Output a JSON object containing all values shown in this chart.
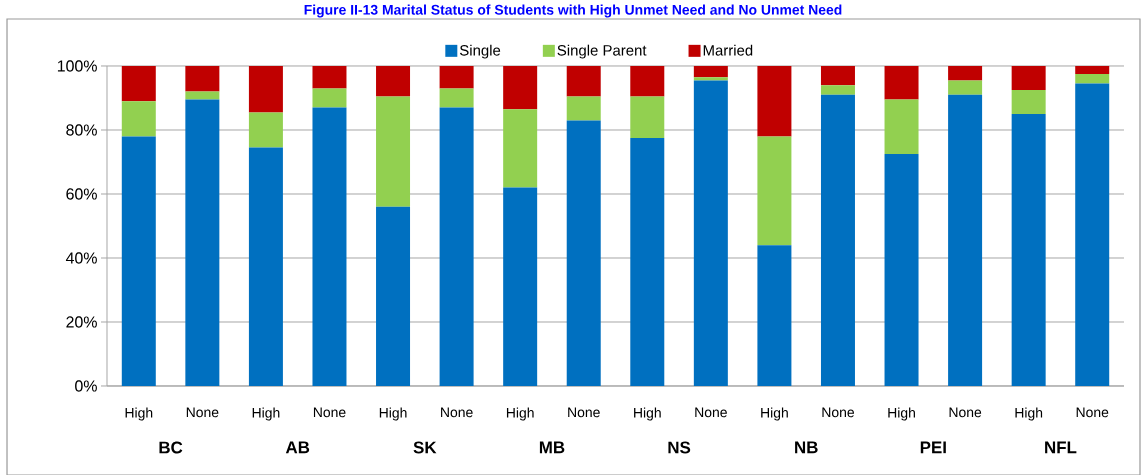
{
  "chart_data": {
    "type": "bar",
    "stacked": true,
    "title": "Figure II-13 Marital Status of Students with High Unmet Need and No Unmet Need",
    "categories": [
      "High",
      "None",
      "High",
      "None",
      "High",
      "None",
      "High",
      "None",
      "High",
      "None",
      "High",
      "None",
      "High",
      "None",
      "High",
      "None"
    ],
    "annotations": [
      "BC",
      "AB",
      "SK",
      "MB",
      "NS",
      "NB",
      "PEI",
      "NFL"
    ],
    "series": [
      {
        "name": "Single",
        "color": "#0070c0",
        "values": [
          78,
          89.5,
          74.5,
          87,
          56,
          87,
          62,
          83,
          77.5,
          95.5,
          44,
          91,
          72.5,
          91,
          85,
          94.5
        ]
      },
      {
        "name": "Single Parent",
        "color": "#92d050",
        "values": [
          11,
          2.5,
          11,
          6,
          34.5,
          6,
          24.5,
          7.5,
          13,
          1,
          34,
          3,
          17,
          4.5,
          7.5,
          3
        ]
      },
      {
        "name": "Married",
        "color": "#c00000",
        "values": [
          11,
          8,
          14.5,
          7,
          9.5,
          7,
          13.5,
          9.5,
          9.5,
          3.5,
          22,
          6,
          10.5,
          4.5,
          7.5,
          2.5
        ]
      }
    ],
    "ylim": [
      0,
      100
    ],
    "yticks": [
      {
        "value": 0,
        "label": "0%"
      },
      {
        "value": 20,
        "label": "20%"
      },
      {
        "value": 40,
        "label": "40%"
      },
      {
        "value": 60,
        "label": "60%"
      },
      {
        "value": 80,
        "label": "80%"
      },
      {
        "value": 100,
        "label": "100%"
      }
    ],
    "grid": "y",
    "legend": "top"
  }
}
